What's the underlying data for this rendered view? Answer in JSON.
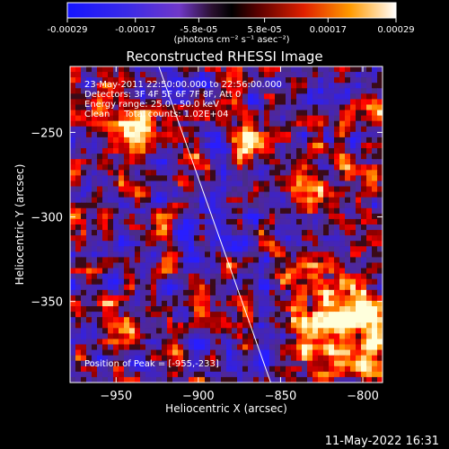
{
  "colorbar": {
    "tick_labels": [
      "-0.00029",
      "-0.00017",
      "-5.8e-05",
      "5.8e-05",
      "0.00017",
      "0.00029"
    ],
    "tick_values": [
      -0.00029,
      -0.00017,
      -5.8e-05,
      5.8e-05,
      0.00017,
      0.00029
    ],
    "range": [
      -0.00029,
      0.00029
    ],
    "units_label": "(photons cm⁻² s⁻¹ asec⁻²)"
  },
  "chart_data": {
    "type": "heatmap",
    "title": "Reconstructed RHESSI Image",
    "xlabel": "Heliocentric X (arcsec)",
    "ylabel": "Heliocentric Y (arcsec)",
    "xlim": [
      -978,
      -788
    ],
    "ylim": [
      -398,
      -211
    ],
    "x_ticks": [
      -950,
      -900,
      -850,
      -800
    ],
    "x_tick_labels": [
      "−950",
      "−900",
      "−850",
      "−800"
    ],
    "y_ticks": [
      -250,
      -300,
      -350
    ],
    "y_tick_labels": [
      "−250",
      "−300",
      "−350"
    ],
    "annotations": [
      "23-May-2011 22:50:00.000 to 22:56:00.000",
      "Detectors: 3F 4F 5F 6F 7F 8F, Att 0",
      "Energy range: 25.0 - 50.0 keV",
      "Clean     Total counts: 1.02E+04"
    ],
    "peak_label": "Position of Peak = [-955,-233]",
    "limb_line": [
      [
        -924,
        -211
      ],
      [
        -856,
        -398
      ]
    ],
    "grid": false,
    "colormap": "blue-white-red"
  },
  "footer": {
    "timestamp": "11-May-2022 16:31"
  }
}
